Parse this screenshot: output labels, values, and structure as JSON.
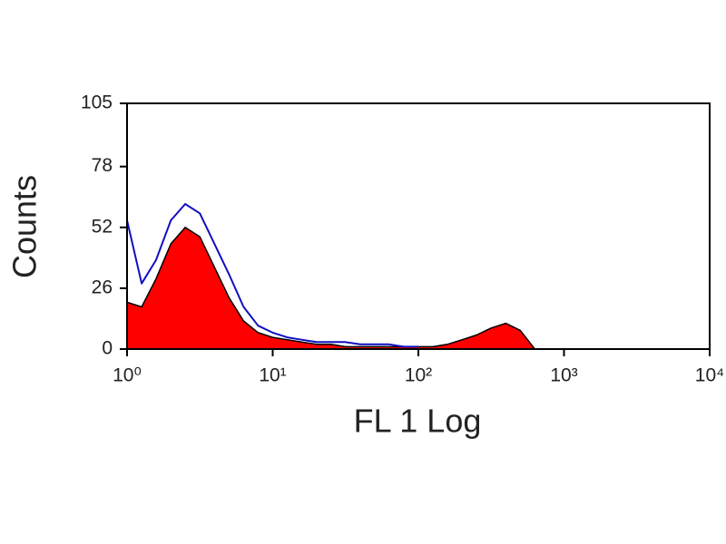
{
  "chart_data": {
    "type": "histogram-overlay",
    "xlabel": "FL 1 Log",
    "ylabel": "Counts",
    "x_log": true,
    "xlim": [
      1,
      10000
    ],
    "xticks": [
      {
        "value": 1,
        "label": "10⁰"
      },
      {
        "value": 10,
        "label": "10¹"
      },
      {
        "value": 100,
        "label": "10²"
      },
      {
        "value": 1000,
        "label": "10³"
      },
      {
        "value": 10000,
        "label": "10⁴"
      }
    ],
    "ylim": [
      0,
      105
    ],
    "yticks": [
      0,
      26,
      52,
      78,
      105
    ],
    "x": [
      1,
      1.26,
      1.58,
      2,
      2.51,
      3.16,
      3.98,
      5.01,
      6.31,
      7.94,
      10,
      12.6,
      15.8,
      20,
      25.1,
      31.6,
      39.8,
      50.1,
      63.1,
      79.4,
      100,
      126,
      158,
      200,
      251,
      316,
      398,
      501,
      631
    ],
    "series": [
      {
        "color": "#ff0000",
        "outline": "#000000",
        "filled": true,
        "values": [
          20,
          18,
          30,
          45,
          52,
          48,
          35,
          22,
          12,
          7,
          5,
          4,
          3,
          2,
          2,
          1,
          1,
          1,
          1,
          1,
          1,
          1,
          2,
          4,
          6,
          9,
          11,
          8,
          0
        ]
      },
      {
        "color": "#1010c0",
        "filled": false,
        "values": [
          55,
          28,
          38,
          55,
          62,
          58,
          45,
          32,
          18,
          10,
          7,
          5,
          4,
          3,
          3,
          3,
          2,
          2,
          2,
          1,
          1,
          null,
          null,
          null,
          null,
          null,
          null,
          null,
          null
        ]
      }
    ]
  }
}
